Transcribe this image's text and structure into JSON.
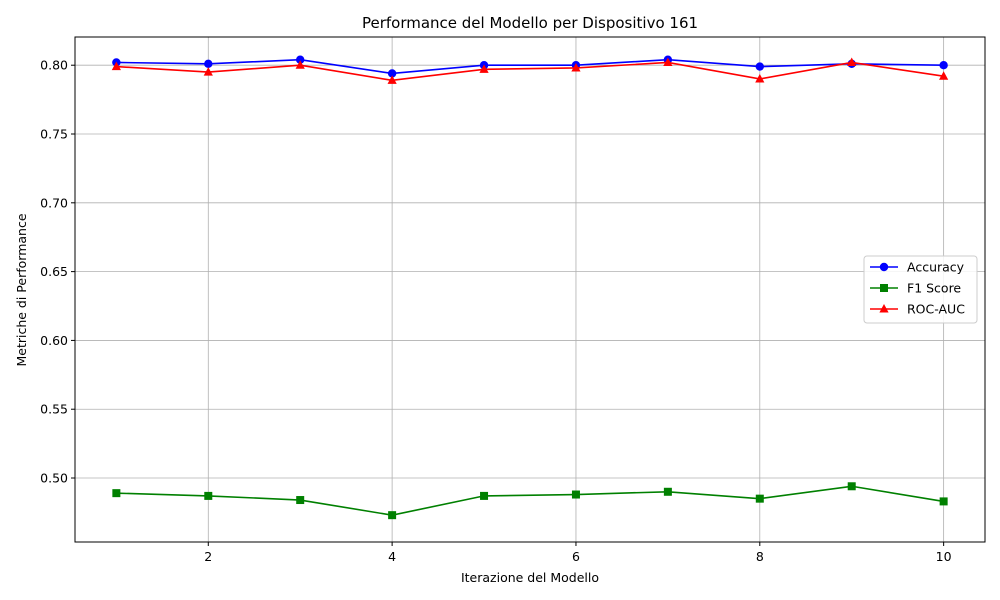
{
  "chart_data": {
    "type": "line",
    "title": "Performance del Modello per Dispositivo 161",
    "xlabel": "Iterazione del Modello",
    "ylabel": "Metriche di Performance",
    "x": [
      1,
      2,
      3,
      4,
      5,
      6,
      7,
      8,
      9,
      10
    ],
    "xlim": [
      0.55,
      10.45
    ],
    "ylim": [
      0.4535,
      0.8205
    ],
    "xticks": [
      2,
      4,
      6,
      8,
      10
    ],
    "yticks": [
      0.5,
      0.55,
      0.6,
      0.65,
      0.7,
      0.75,
      0.8
    ],
    "xtick_labels": [
      "2",
      "4",
      "6",
      "8",
      "10"
    ],
    "ytick_labels": [
      "0.50",
      "0.55",
      "0.60",
      "0.65",
      "0.70",
      "0.75",
      "0.80"
    ],
    "grid": true,
    "legend_position": "center-right",
    "series": [
      {
        "name": "Accuracy",
        "color": "#0000ff",
        "marker": "circle",
        "values": [
          0.802,
          0.801,
          0.804,
          0.794,
          0.8,
          0.8,
          0.804,
          0.799,
          0.801,
          0.8
        ]
      },
      {
        "name": "F1 Score",
        "color": "#008000",
        "marker": "square",
        "values": [
          0.489,
          0.487,
          0.484,
          0.473,
          0.487,
          0.488,
          0.49,
          0.485,
          0.494,
          0.483
        ]
      },
      {
        "name": "ROC-AUC",
        "color": "#ff0000",
        "marker": "triangle",
        "values": [
          0.799,
          0.795,
          0.8,
          0.789,
          0.797,
          0.798,
          0.802,
          0.79,
          0.802,
          0.792
        ]
      }
    ]
  }
}
